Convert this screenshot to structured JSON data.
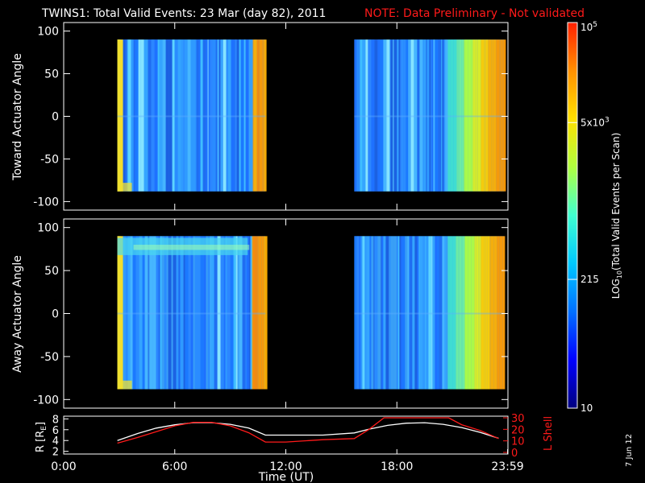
{
  "header": {
    "title": "TWINS1: Total Valid Events: 23 Mar (day  82), 2011",
    "note": "NOTE: Data Preliminary - Not validated"
  },
  "footer": {
    "date_stamp": "7 Jun 12"
  },
  "colors": {
    "background": "#000000",
    "note": "#ff1a1a",
    "r_line": "#ffffff",
    "lshell_line": "#ff1a1a",
    "colormap": [
      "#00007f",
      "#0000ff",
      "#0070ff",
      "#00c8ff",
      "#40ffd0",
      "#b0ff40",
      "#ffe000",
      "#ff9000",
      "#ff2000"
    ]
  },
  "chart_data": [
    {
      "type": "heatmap",
      "name": "toward",
      "ylabel": "Toward Actuator Angle",
      "ylim": [
        -110,
        110
      ],
      "y_ticks": [
        100,
        50,
        0,
        -50,
        -100
      ],
      "x_range_hours": [
        0,
        24
      ],
      "color_scale": "log",
      "data_blocks": [
        {
          "start_hour": 2.9,
          "end_hour": 10.9,
          "angle_min": -88,
          "angle_max": 90
        },
        {
          "start_hour": 15.7,
          "end_hour": 23.8,
          "angle_min": -88,
          "angle_max": 90
        }
      ]
    },
    {
      "type": "heatmap",
      "name": "away",
      "ylabel": "Away Actuator Angle",
      "ylim": [
        -110,
        110
      ],
      "y_ticks": [
        100,
        50,
        0,
        -50,
        -100
      ],
      "x_range_hours": [
        0,
        24
      ],
      "color_scale": "log",
      "data_blocks": [
        {
          "start_hour": 2.9,
          "end_hour": 10.9,
          "angle_min": -88,
          "angle_max": 90
        },
        {
          "start_hour": 15.7,
          "end_hour": 23.8,
          "angle_min": -88,
          "angle_max": 90
        }
      ]
    },
    {
      "type": "line",
      "name": "orbit",
      "xlabel": "Time (UT)",
      "x_tick_labels": [
        "0:00",
        "6:00",
        "12:00",
        "18:00",
        "23:59"
      ],
      "x_tick_hours": [
        0,
        6,
        12,
        18,
        23.98
      ],
      "left_ylabel": "R [R",
      "left_ylabel_sub": "E",
      "left_ylabel_end": "]",
      "left_ylim": [
        1.5,
        8.5
      ],
      "left_ticks": [
        8,
        6,
        4,
        2
      ],
      "right_ylabel": "L Shell",
      "right_ylim": [
        0,
        30
      ],
      "right_ticks": [
        30,
        20,
        10,
        0
      ],
      "series": [
        {
          "axis": "left",
          "x": [
            2.9,
            4,
            5,
            6,
            7,
            8,
            9,
            10,
            10.9,
            12,
            14,
            15.7,
            16.5,
            17.5,
            18.5,
            19.5,
            20.5,
            21.5,
            22.5,
            23.5
          ],
          "values": [
            4.0,
            5.3,
            6.3,
            6.9,
            7.3,
            7.3,
            7.0,
            6.3,
            5.0,
            5.0,
            5.0,
            5.4,
            6.1,
            6.8,
            7.2,
            7.3,
            7.0,
            6.4,
            5.5,
            4.4
          ]
        },
        {
          "axis": "right",
          "x": [
            2.9,
            4,
            5,
            6,
            7,
            8,
            9,
            10,
            10.9,
            12,
            14,
            15.7,
            16.5,
            17.3,
            20.8,
            21.5,
            22.5,
            23.5
          ],
          "values": [
            8,
            13,
            18,
            23,
            26,
            26,
            23,
            17,
            9,
            9,
            11,
            12,
            20,
            30,
            30,
            24,
            19,
            12
          ]
        }
      ]
    }
  ],
  "colorbar": {
    "label_prefix": "LOG",
    "label_sub": "10",
    "label_rest": "(Total Valid Events per Scan)",
    "ticks": [
      {
        "base": "10",
        "exp": "5",
        "frac": 1.0
      },
      {
        "base": "5x10",
        "exp": "3",
        "frac": 0.7406
      },
      {
        "base": "215",
        "exp": "",
        "frac": 0.3339
      },
      {
        "base": "10",
        "exp": "",
        "frac": 0.0
      }
    ]
  }
}
